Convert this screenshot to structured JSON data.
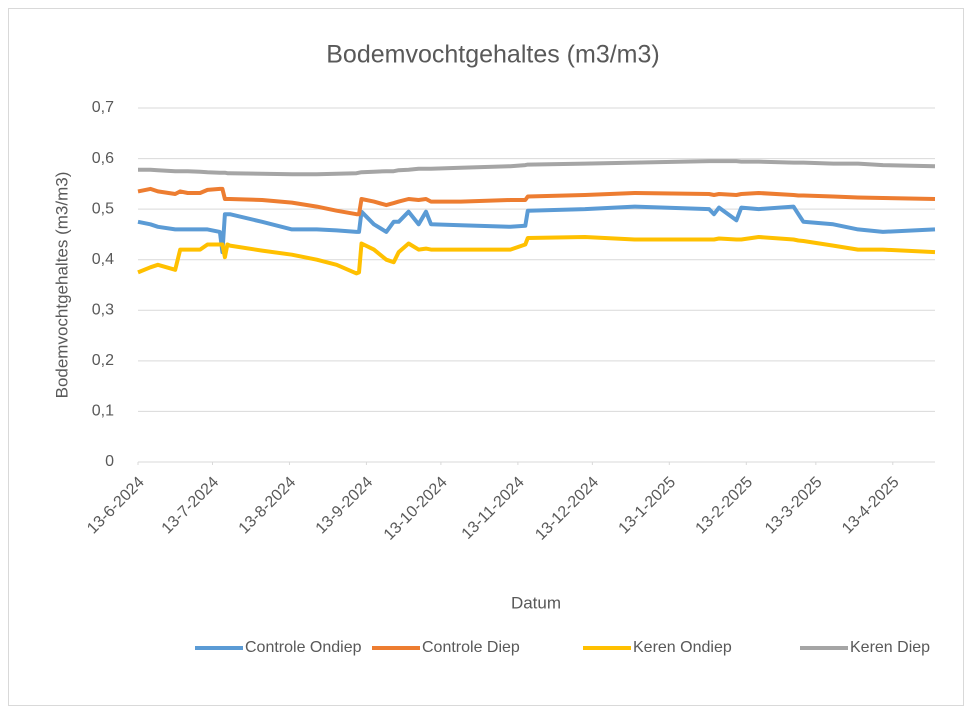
{
  "chart_data": {
    "type": "line",
    "title": "Bodemvochtgehaltes (m3/m3)",
    "x_label": "Datum",
    "y_label": "Bodemvochtgehaltes (m3/m3)",
    "x": [
      "2024-06-13",
      "2024-06-18",
      "2024-06-21",
      "2024-06-28",
      "2024-06-30",
      "2024-07-03",
      "2024-07-08",
      "2024-07-11",
      "2024-07-16",
      "2024-07-17",
      "2024-07-18",
      "2024-07-19",
      "2024-07-20",
      "2024-08-02",
      "2024-08-14",
      "2024-08-24",
      "2024-09-01",
      "2024-09-09",
      "2024-09-10",
      "2024-09-11",
      "2024-09-16",
      "2024-09-21",
      "2024-09-24",
      "2024-09-26",
      "2024-09-30",
      "2024-10-04",
      "2024-10-07",
      "2024-10-09",
      "2024-10-21",
      "2024-11-10",
      "2024-11-16",
      "2024-11-17",
      "2024-12-10",
      "2024-12-30",
      "2025-01-29",
      "2025-01-31",
      "2025-02-02",
      "2025-02-09",
      "2025-02-11",
      "2025-02-18",
      "2025-03-04",
      "2025-03-06",
      "2025-03-08",
      "2025-03-20",
      "2025-03-30",
      "2025-04-09",
      "2025-04-30"
    ],
    "series": [
      {
        "name": "Controle Ondiep",
        "color": "#5b9bd5",
        "values": [
          0.475,
          0.47,
          0.465,
          0.46,
          0.46,
          0.46,
          0.46,
          0.46,
          0.455,
          0.415,
          0.49,
          0.49,
          0.49,
          0.475,
          0.46,
          0.46,
          0.458,
          0.455,
          0.455,
          0.495,
          0.47,
          0.455,
          0.475,
          0.475,
          0.495,
          0.47,
          0.495,
          0.47,
          0.468,
          0.465,
          0.467,
          0.497,
          0.5,
          0.505,
          0.5,
          0.49,
          0.503,
          0.478,
          0.503,
          0.5,
          0.505,
          0.49,
          0.475,
          0.47,
          0.46,
          0.455,
          0.46
        ]
      },
      {
        "name": "Controle Diep",
        "color": "#ed7d31",
        "values": [
          0.535,
          0.54,
          0.535,
          0.53,
          0.535,
          0.532,
          0.532,
          0.538,
          0.54,
          0.54,
          0.52,
          0.52,
          0.52,
          0.518,
          0.513,
          0.505,
          0.497,
          0.49,
          0.49,
          0.52,
          0.515,
          0.508,
          0.512,
          0.515,
          0.52,
          0.518,
          0.52,
          0.515,
          0.515,
          0.518,
          0.518,
          0.525,
          0.528,
          0.532,
          0.53,
          0.528,
          0.53,
          0.528,
          0.53,
          0.532,
          0.528,
          0.527,
          0.527,
          0.525,
          0.523,
          0.522,
          0.52
        ]
      },
      {
        "name": "Keren Ondiep",
        "color": "#ffc000",
        "values": [
          0.375,
          0.385,
          0.39,
          0.38,
          0.42,
          0.42,
          0.42,
          0.43,
          0.43,
          0.43,
          0.405,
          0.43,
          0.428,
          0.418,
          0.41,
          0.4,
          0.39,
          0.373,
          0.375,
          0.432,
          0.42,
          0.4,
          0.395,
          0.415,
          0.432,
          0.42,
          0.422,
          0.42,
          0.42,
          0.42,
          0.43,
          0.443,
          0.445,
          0.44,
          0.44,
          0.44,
          0.442,
          0.44,
          0.44,
          0.445,
          0.44,
          0.438,
          0.437,
          0.428,
          0.42,
          0.42,
          0.415
        ]
      },
      {
        "name": "Keren Diep",
        "color": "#a5a5a5",
        "values": [
          0.578,
          0.578,
          0.577,
          0.575,
          0.575,
          0.575,
          0.574,
          0.573,
          0.572,
          0.572,
          0.572,
          0.571,
          0.571,
          0.57,
          0.569,
          0.569,
          0.57,
          0.571,
          0.572,
          0.573,
          0.574,
          0.575,
          0.575,
          0.577,
          0.578,
          0.58,
          0.58,
          0.58,
          0.582,
          0.585,
          0.587,
          0.588,
          0.59,
          0.592,
          0.595,
          0.595,
          0.595,
          0.595,
          0.594,
          0.594,
          0.592,
          0.592,
          0.592,
          0.59,
          0.59,
          0.587,
          0.585
        ]
      }
    ],
    "xlim": [
      "2024-06-13",
      "2025-04-30"
    ],
    "xticks": [
      {
        "value": "2024-06-13",
        "label": "13-6-2024"
      },
      {
        "value": "2024-07-13",
        "label": "13-7-2024"
      },
      {
        "value": "2024-08-13",
        "label": "13-8-2024"
      },
      {
        "value": "2024-09-13",
        "label": "13-9-2024"
      },
      {
        "value": "2024-10-13",
        "label": "13-10-2024"
      },
      {
        "value": "2024-11-13",
        "label": "13-11-2024"
      },
      {
        "value": "2024-12-13",
        "label": "13-12-2024"
      },
      {
        "value": "2025-01-13",
        "label": "13-1-2025"
      },
      {
        "value": "2025-02-13",
        "label": "13-2-2025"
      },
      {
        "value": "2025-03-13",
        "label": "13-3-2025"
      },
      {
        "value": "2025-04-13",
        "label": "13-4-2025"
      }
    ],
    "ylim": [
      0,
      0.7
    ],
    "yticks": [
      0,
      {
        "value": 0.1,
        "label": "0,1"
      },
      {
        "value": 0.2,
        "label": "0,2"
      },
      {
        "value": 0.3,
        "label": "0,3"
      },
      {
        "value": 0.4,
        "label": "0,4"
      },
      {
        "value": 0.5,
        "label": "0,5"
      },
      {
        "value": 0.6,
        "label": "0,6"
      },
      {
        "value": 0.7,
        "label": "0,7"
      }
    ],
    "grid": true,
    "legend": "bottom"
  }
}
